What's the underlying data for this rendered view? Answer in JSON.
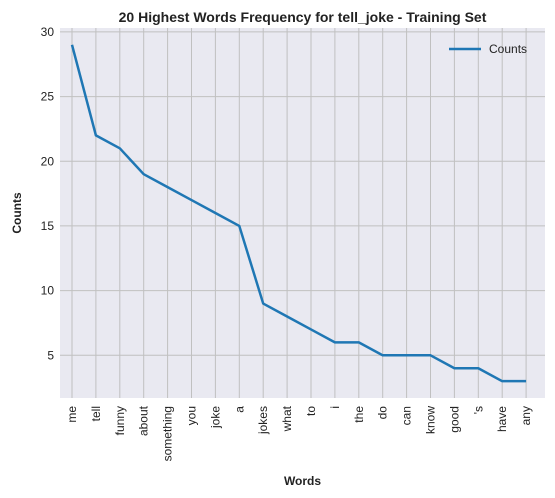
{
  "chart_data": {
    "type": "line",
    "title": "20 Highest Words Frequency for tell_joke - Training Set",
    "xlabel": "Words",
    "ylabel": "Counts",
    "categories": [
      "me",
      "tell",
      "funny",
      "about",
      "something",
      "you",
      "joke",
      "a",
      "jokes",
      "what",
      "to",
      "i",
      "the",
      "do",
      "can",
      "know",
      "good",
      "'s",
      "have",
      "any"
    ],
    "series": [
      {
        "name": "Counts",
        "color": "#1f77b4",
        "values": [
          29,
          22,
          21,
          19,
          18,
          17,
          16,
          15,
          9,
          8,
          7,
          6,
          6,
          5,
          5,
          5,
          4,
          4,
          3,
          3
        ]
      }
    ],
    "ylim": [
      1.7,
      30.3
    ],
    "yticks": [
      5,
      10,
      15,
      20,
      25,
      30
    ],
    "grid": true,
    "legend": "top-right",
    "colors": {
      "plot_background": "#e9e9f1",
      "grid": "#c0c0c0"
    }
  }
}
